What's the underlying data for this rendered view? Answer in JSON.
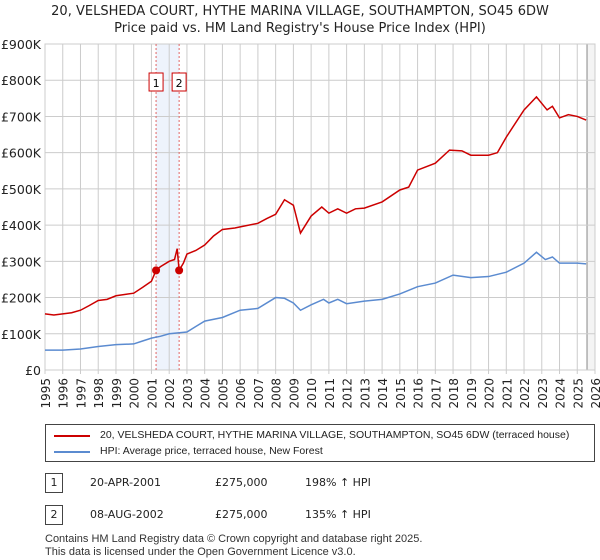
{
  "title": "20, VELSHEDA COURT, HYTHE MARINA VILLAGE, SOUTHAMPTON, SO45 6DW",
  "subtitle": "Price paid vs. HM Land Registry's House Price Index (HPI)",
  "chart_data": {
    "type": "line",
    "title": "20, VELSHEDA COURT, HYTHE MARINA VILLAGE, SOUTHAMPTON, SO45 6DW",
    "xlim": [
      1995,
      2026
    ],
    "ylim": [
      0,
      900000
    ],
    "yticks": [
      0,
      100000,
      200000,
      300000,
      400000,
      500000,
      600000,
      700000,
      800000,
      900000
    ],
    "ytick_labels": [
      "£0",
      "£100K",
      "£200K",
      "£300K",
      "£400K",
      "£500K",
      "£600K",
      "£700K",
      "£800K",
      "£900K"
    ],
    "xticks": [
      "1995",
      "1996",
      "1997",
      "1998",
      "1999",
      "2000",
      "2001",
      "2002",
      "2003",
      "2004",
      "2005",
      "2006",
      "2007",
      "2008",
      "2009",
      "2010",
      "2011",
      "2012",
      "2013",
      "2014",
      "2015",
      "2016",
      "2017",
      "2018",
      "2019",
      "2020",
      "2021",
      "2022",
      "2023",
      "2024",
      "2025",
      "2026"
    ],
    "grid": true,
    "series": [
      {
        "name": "20, VELSHEDA COURT, HYTHE MARINA VILLAGE, SOUTHAMPTON, SO45 6DW (terraced house)",
        "color": "#cc0000",
        "x": [
          1995,
          1995.5,
          1996,
          1996.5,
          1997,
          1997.5,
          1998,
          1998.5,
          1999,
          2000,
          2000.5,
          2001,
          2001.26,
          2001.5,
          2002,
          2002.3,
          2002.45,
          2002.56,
          2002.8,
          2003,
          2003.5,
          2004,
          2004.5,
          2005,
          2005.7,
          2006,
          2007,
          2007.5,
          2008,
          2008.5,
          2009,
          2009.4,
          2010,
          2010.6,
          2011,
          2011.5,
          2012,
          2012.5,
          2013,
          2014,
          2015,
          2015.5,
          2016,
          2017,
          2017.8,
          2018.5,
          2019,
          2020,
          2020.5,
          2021,
          2022,
          2022.7,
          2023.3,
          2023.6,
          2024,
          2024.5,
          2025,
          2025.5
        ],
        "y": [
          155000,
          152000,
          155000,
          158000,
          165000,
          178000,
          192000,
          195000,
          205000,
          212000,
          228000,
          245000,
          275000,
          285000,
          300000,
          305000,
          335000,
          275000,
          295000,
          320000,
          330000,
          345000,
          370000,
          388000,
          392000,
          395000,
          405000,
          418000,
          430000,
          470000,
          455000,
          378000,
          425000,
          450000,
          433000,
          445000,
          433000,
          445000,
          447000,
          464000,
          497000,
          505000,
          552000,
          571000,
          607000,
          605000,
          593000,
          593000,
          600000,
          643000,
          718000,
          754000,
          718000,
          728000,
          696000,
          705000,
          700000,
          690000
        ]
      },
      {
        "name": "HPI: Average price, terraced house, New Forest",
        "color": "#5b8bd0",
        "x": [
          1995,
          1996,
          1997,
          1998,
          1999,
          2000,
          2000.5,
          2001,
          2001.5,
          2002,
          2003,
          2003.5,
          2004,
          2005,
          2006,
          2007,
          2008,
          2008.5,
          2009,
          2009.4,
          2010,
          2010.7,
          2011,
          2011.5,
          2012,
          2013,
          2014,
          2015,
          2016,
          2017,
          2018,
          2019,
          2020,
          2021,
          2022,
          2022.7,
          2023.2,
          2023.6,
          2024,
          2025,
          2025.5
        ],
        "y": [
          55000,
          55000,
          58000,
          65000,
          70000,
          72000,
          80000,
          88000,
          93000,
          100000,
          105000,
          120000,
          135000,
          145000,
          165000,
          170000,
          200000,
          198000,
          185000,
          165000,
          180000,
          195000,
          185000,
          195000,
          183000,
          190000,
          195000,
          210000,
          230000,
          240000,
          262000,
          255000,
          258000,
          270000,
          295000,
          325000,
          305000,
          312000,
          295000,
          295000,
          293000
        ]
      }
    ],
    "annotations": [
      {
        "label": "1",
        "x": 2001.26,
        "y": 275000
      },
      {
        "label": "2",
        "x": 2002.56,
        "y": 275000
      }
    ],
    "legend": "bottom"
  },
  "legend": {
    "property": "20, VELSHEDA COURT, HYTHE MARINA VILLAGE, SOUTHAMPTON, SO45 6DW (terraced house)",
    "hpi": "HPI: Average price, terraced house, New Forest"
  },
  "transactions": [
    {
      "num": "1",
      "date": "20-APR-2001",
      "price": "£275,000",
      "hpi": "198% ↑ HPI"
    },
    {
      "num": "2",
      "date": "08-AUG-2002",
      "price": "£275,000",
      "hpi": "135% ↑ HPI"
    }
  ],
  "footer": {
    "line1": "Contains HM Land Registry data © Crown copyright and database right 2025.",
    "line2": "This data is licensed under the Open Government Licence v3.0."
  }
}
